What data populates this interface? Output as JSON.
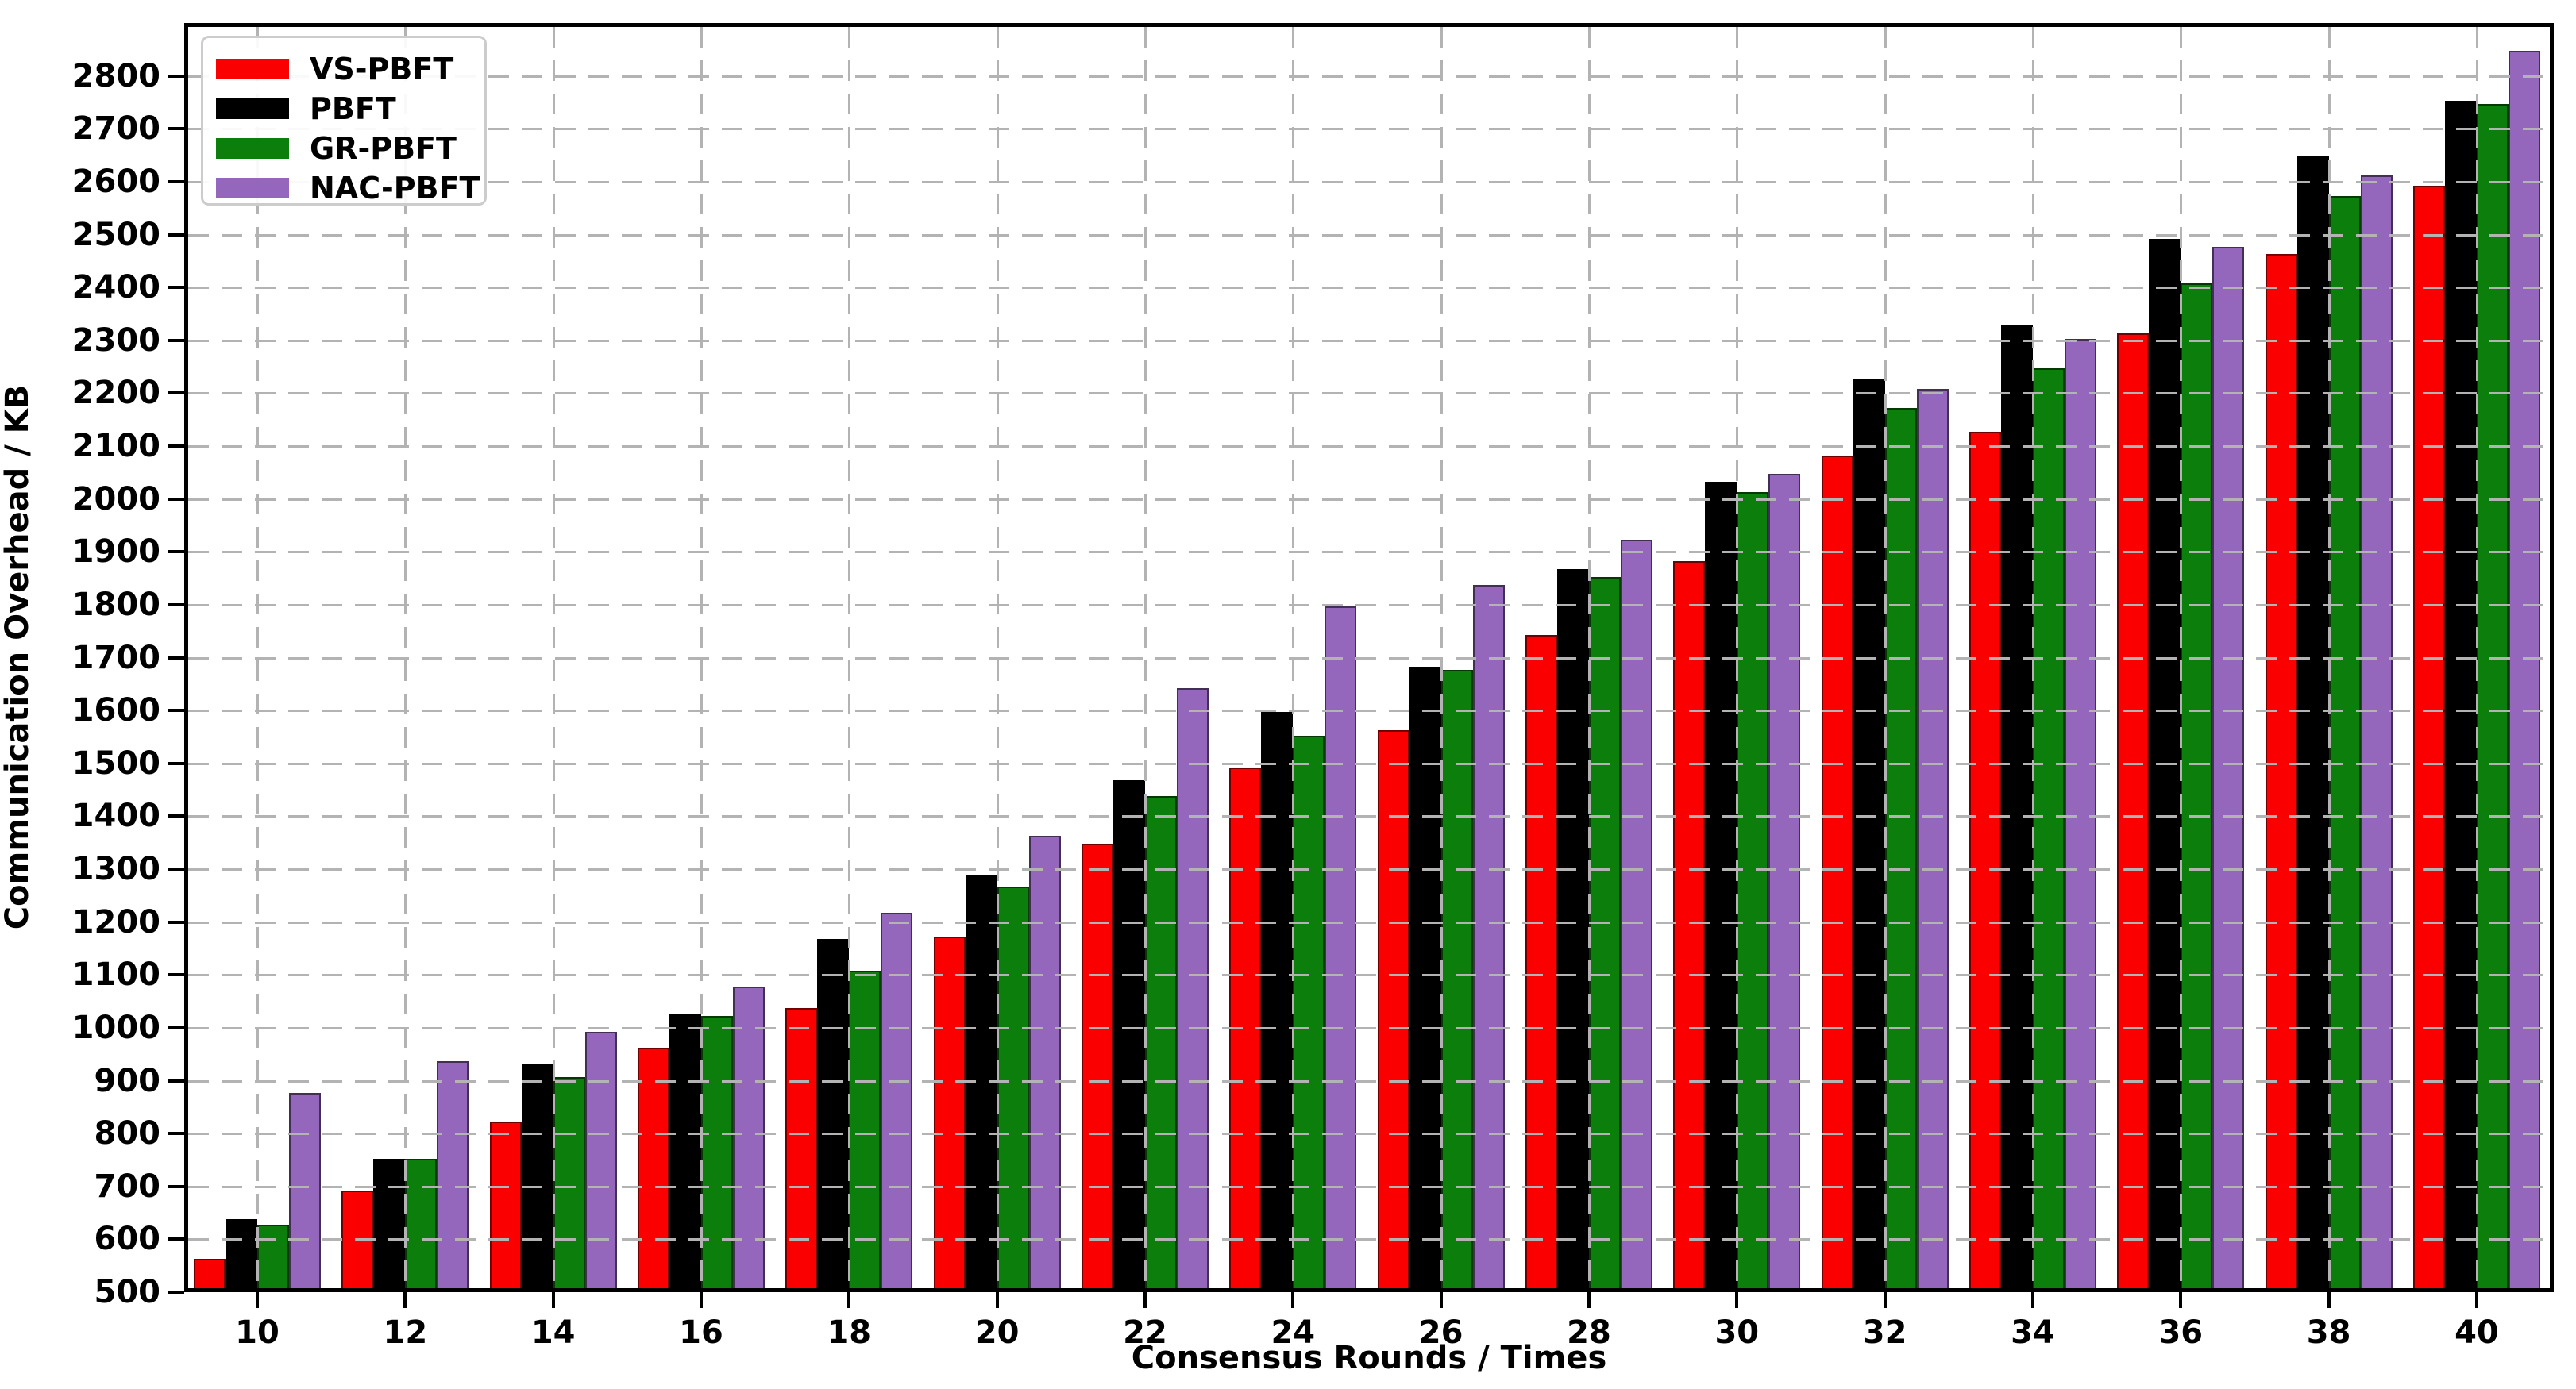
{
  "chart_data": {
    "type": "bar",
    "title": "",
    "xlabel": "Consensus Rounds / Times",
    "ylabel": "Communication Overhead / KB",
    "categories": [
      10,
      12,
      14,
      16,
      18,
      20,
      22,
      24,
      26,
      28,
      30,
      32,
      34,
      36,
      38,
      40
    ],
    "series": [
      {
        "name": "VS-PBFT",
        "color": "#fb0000",
        "values": [
          555,
          685,
          815,
          955,
          1030,
          1165,
          1340,
          1485,
          1555,
          1735,
          1875,
          2075,
          2120,
          2305,
          2455,
          2585
        ]
      },
      {
        "name": "PBFT",
        "color": "#000000",
        "values": [
          630,
          745,
          925,
          1020,
          1160,
          1280,
          1460,
          1590,
          1675,
          1860,
          2025,
          2220,
          2320,
          2485,
          2640,
          2745
        ]
      },
      {
        "name": "GR-PBFT",
        "color": "#0b7e0b",
        "values": [
          620,
          745,
          900,
          1015,
          1100,
          1260,
          1430,
          1545,
          1670,
          1845,
          2005,
          2165,
          2240,
          2400,
          2565,
          2740
        ]
      },
      {
        "name": "NAC-PBFT",
        "color": "#9467bd",
        "values": [
          870,
          930,
          985,
          1070,
          1210,
          1355,
          1635,
          1790,
          1830,
          1915,
          2040,
          2200,
          2295,
          2470,
          2605,
          2840
        ]
      }
    ],
    "ylim": [
      500,
      2900
    ],
    "yticks": [
      500,
      600,
      700,
      800,
      900,
      1000,
      1100,
      1200,
      1300,
      1400,
      1500,
      1600,
      1700,
      1800,
      1900,
      2000,
      2100,
      2200,
      2300,
      2400,
      2500,
      2600,
      2700,
      2800
    ],
    "grid": true,
    "legend_position": "upper-left"
  }
}
